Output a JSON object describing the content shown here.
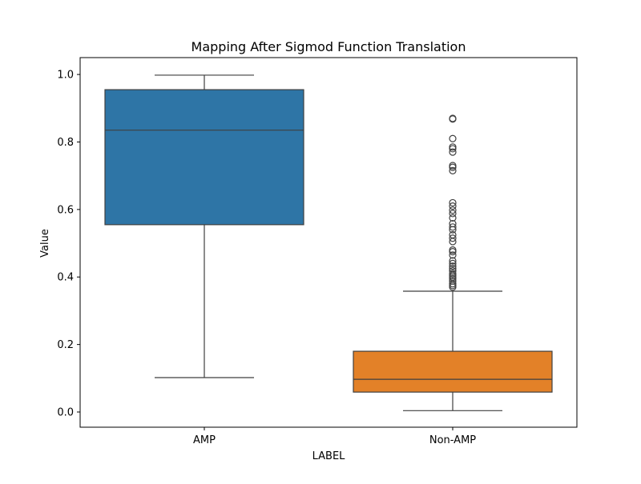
{
  "chart_data": {
    "type": "box",
    "title": "Mapping After Sigmod Function Translation",
    "xlabel": "LABEL",
    "ylabel": "Value",
    "ylim": [
      -0.045,
      1.05
    ],
    "yticks": [
      "0.0",
      "0.2",
      "0.4",
      "0.6",
      "0.8",
      "1.0"
    ],
    "grid": false,
    "categories": [
      "AMP",
      "Non-AMP"
    ],
    "boxes": [
      {
        "category": "AMP",
        "color": "#2e75a6",
        "whisker_low": 0.102,
        "q1": 0.555,
        "median": 0.835,
        "q3": 0.955,
        "whisker_high": 0.998,
        "outliers": []
      },
      {
        "category": "Non-AMP",
        "color": "#e38128",
        "whisker_low": 0.004,
        "q1": 0.059,
        "median": 0.097,
        "q3": 0.18,
        "whisker_high": 0.358,
        "outliers": [
          0.37,
          0.375,
          0.38,
          0.388,
          0.395,
          0.4,
          0.405,
          0.41,
          0.418,
          0.425,
          0.432,
          0.44,
          0.448,
          0.465,
          0.475,
          0.48,
          0.505,
          0.515,
          0.525,
          0.54,
          0.548,
          0.558,
          0.575,
          0.588,
          0.598,
          0.61,
          0.62,
          0.715,
          0.725,
          0.73,
          0.77,
          0.78,
          0.785,
          0.81,
          0.868,
          0.87
        ]
      }
    ]
  }
}
